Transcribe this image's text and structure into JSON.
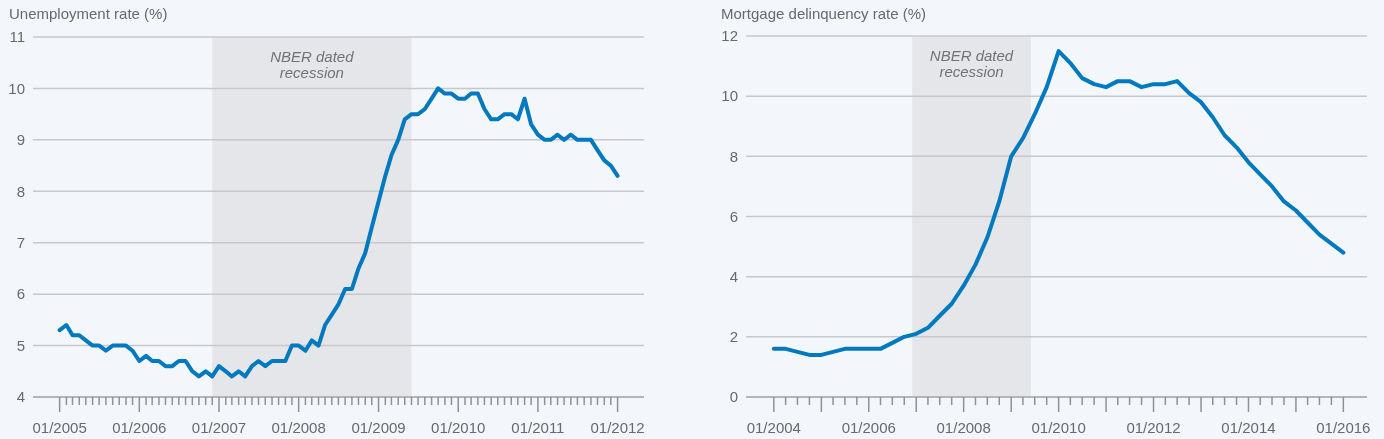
{
  "chart_data": [
    {
      "type": "line",
      "ylabel": "Unemployment rate (%)",
      "x": [
        "2005-01",
        "2005-02",
        "2005-03",
        "2005-04",
        "2005-05",
        "2005-06",
        "2005-07",
        "2005-08",
        "2005-09",
        "2005-10",
        "2005-11",
        "2005-12",
        "2006-01",
        "2006-02",
        "2006-03",
        "2006-04",
        "2006-05",
        "2006-06",
        "2006-07",
        "2006-08",
        "2006-09",
        "2006-10",
        "2006-11",
        "2006-12",
        "2007-01",
        "2007-02",
        "2007-03",
        "2007-04",
        "2007-05",
        "2007-06",
        "2007-07",
        "2007-08",
        "2007-09",
        "2007-10",
        "2007-11",
        "2007-12",
        "2008-01",
        "2008-02",
        "2008-03",
        "2008-04",
        "2008-05",
        "2008-06",
        "2008-07",
        "2008-08",
        "2008-09",
        "2008-10",
        "2008-11",
        "2008-12",
        "2009-01",
        "2009-02",
        "2009-03",
        "2009-04",
        "2009-05",
        "2009-06",
        "2009-07",
        "2009-08",
        "2009-09",
        "2009-10",
        "2009-11",
        "2009-12",
        "2010-01",
        "2010-02",
        "2010-03",
        "2010-04",
        "2010-05",
        "2010-06",
        "2010-07",
        "2010-08",
        "2010-09",
        "2010-10",
        "2010-11",
        "2010-12",
        "2011-01",
        "2011-02",
        "2011-03",
        "2011-04",
        "2011-05",
        "2011-06",
        "2011-07",
        "2011-08",
        "2011-09",
        "2011-10",
        "2011-11",
        "2011-12",
        "2012-01"
      ],
      "series": [
        {
          "color": "#0079c1",
          "values": [
            5.3,
            5.4,
            5.2,
            5.2,
            5.1,
            5.0,
            5.0,
            4.9,
            5.0,
            5.0,
            5.0,
            4.9,
            4.7,
            4.8,
            4.7,
            4.7,
            4.6,
            4.6,
            4.7,
            4.7,
            4.5,
            4.4,
            4.5,
            4.4,
            4.6,
            4.5,
            4.4,
            4.5,
            4.4,
            4.6,
            4.7,
            4.6,
            4.7,
            4.7,
            4.7,
            5.0,
            5.0,
            4.9,
            5.1,
            5.0,
            5.4,
            5.6,
            5.8,
            6.1,
            6.1,
            6.5,
            6.8,
            7.3,
            7.8,
            8.3,
            8.7,
            9.0,
            9.4,
            9.5,
            9.5,
            9.6,
            9.8,
            10.0,
            9.9,
            9.9,
            9.8,
            9.8,
            9.9,
            9.9,
            9.6,
            9.4,
            9.4,
            9.5,
            9.5,
            9.4,
            9.8,
            9.3,
            9.1,
            9.0,
            9.0,
            9.1,
            9.0,
            9.1,
            9.0,
            9.0,
            9.0,
            8.8,
            8.6,
            8.5,
            8.3
          ]
        }
      ],
      "xlim": [
        "2004-09",
        "2012-05"
      ],
      "xticks": [
        {
          "value": "2005-01",
          "label": "01/2005"
        },
        {
          "value": "2005-02",
          "label": null
        },
        {
          "value": "2005-03",
          "label": null
        },
        {
          "value": "2005-04",
          "label": null
        },
        {
          "value": "2005-05",
          "label": null
        },
        {
          "value": "2005-06",
          "label": null
        },
        {
          "value": "2005-07",
          "label": null
        },
        {
          "value": "2005-08",
          "label": null
        },
        {
          "value": "2005-09",
          "label": null
        },
        {
          "value": "2005-10",
          "label": null
        },
        {
          "value": "2005-11",
          "label": null
        },
        {
          "value": "2005-12",
          "label": null
        },
        {
          "value": "2006-01",
          "label": "01/2006"
        },
        {
          "value": "2006-02",
          "label": null
        },
        {
          "value": "2006-03",
          "label": null
        },
        {
          "value": "2006-04",
          "label": null
        },
        {
          "value": "2006-05",
          "label": null
        },
        {
          "value": "2006-06",
          "label": null
        },
        {
          "value": "2006-07",
          "label": null
        },
        {
          "value": "2006-08",
          "label": null
        },
        {
          "value": "2006-09",
          "label": null
        },
        {
          "value": "2006-10",
          "label": null
        },
        {
          "value": "2006-11",
          "label": null
        },
        {
          "value": "2006-12",
          "label": null
        },
        {
          "value": "2007-01",
          "label": "01/2007"
        },
        {
          "value": "2007-02",
          "label": null
        },
        {
          "value": "2007-03",
          "label": null
        },
        {
          "value": "2007-04",
          "label": null
        },
        {
          "value": "2007-05",
          "label": null
        },
        {
          "value": "2007-06",
          "label": null
        },
        {
          "value": "2007-07",
          "label": null
        },
        {
          "value": "2007-08",
          "label": null
        },
        {
          "value": "2007-09",
          "label": null
        },
        {
          "value": "2007-10",
          "label": null
        },
        {
          "value": "2007-11",
          "label": null
        },
        {
          "value": "2007-12",
          "label": null
        },
        {
          "value": "2008-01",
          "label": "01/2008"
        },
        {
          "value": "2008-02",
          "label": null
        },
        {
          "value": "2008-03",
          "label": null
        },
        {
          "value": "2008-04",
          "label": null
        },
        {
          "value": "2008-05",
          "label": null
        },
        {
          "value": "2008-06",
          "label": null
        },
        {
          "value": "2008-07",
          "label": null
        },
        {
          "value": "2008-08",
          "label": null
        },
        {
          "value": "2008-09",
          "label": null
        },
        {
          "value": "2008-10",
          "label": null
        },
        {
          "value": "2008-11",
          "label": null
        },
        {
          "value": "2008-12",
          "label": null
        },
        {
          "value": "2009-01",
          "label": "01/2009"
        },
        {
          "value": "2009-02",
          "label": null
        },
        {
          "value": "2009-03",
          "label": null
        },
        {
          "value": "2009-04",
          "label": null
        },
        {
          "value": "2009-05",
          "label": null
        },
        {
          "value": "2009-06",
          "label": null
        },
        {
          "value": "2009-07",
          "label": null
        },
        {
          "value": "2009-08",
          "label": null
        },
        {
          "value": "2009-09",
          "label": null
        },
        {
          "value": "2009-10",
          "label": null
        },
        {
          "value": "2009-11",
          "label": null
        },
        {
          "value": "2009-12",
          "label": null
        },
        {
          "value": "2010-01",
          "label": "01/2010"
        },
        {
          "value": "2010-02",
          "label": null
        },
        {
          "value": "2010-03",
          "label": null
        },
        {
          "value": "2010-04",
          "label": null
        },
        {
          "value": "2010-05",
          "label": null
        },
        {
          "value": "2010-06",
          "label": null
        },
        {
          "value": "2010-07",
          "label": null
        },
        {
          "value": "2010-08",
          "label": null
        },
        {
          "value": "2010-09",
          "label": null
        },
        {
          "value": "2010-10",
          "label": null
        },
        {
          "value": "2010-11",
          "label": null
        },
        {
          "value": "2010-12",
          "label": null
        },
        {
          "value": "2011-01",
          "label": "01/2011"
        },
        {
          "value": "2011-02",
          "label": null
        },
        {
          "value": "2011-03",
          "label": null
        },
        {
          "value": "2011-04",
          "label": null
        },
        {
          "value": "2011-05",
          "label": null
        },
        {
          "value": "2011-06",
          "label": null
        },
        {
          "value": "2011-07",
          "label": null
        },
        {
          "value": "2011-08",
          "label": null
        },
        {
          "value": "2011-09",
          "label": null
        },
        {
          "value": "2011-10",
          "label": null
        },
        {
          "value": "2011-11",
          "label": null
        },
        {
          "value": "2011-12",
          "label": null
        },
        {
          "value": "2012-01",
          "label": "01/2012"
        }
      ],
      "ylim": [
        4,
        11
      ],
      "yticks": [
        4,
        5,
        6,
        7,
        8,
        9,
        10,
        11
      ],
      "grid": "y",
      "bands": [
        {
          "axis": "x",
          "from": "2006-12",
          "to": "2009-06",
          "label": "NBER dated recession",
          "color": "#e4e6e9"
        }
      ]
    },
    {
      "type": "line",
      "ylabel": "Mortgage delinquency rate (%)",
      "x": [
        "2004-01",
        "2004-04",
        "2004-07",
        "2004-10",
        "2005-01",
        "2005-04",
        "2005-07",
        "2005-10",
        "2006-01",
        "2006-04",
        "2006-07",
        "2006-10",
        "2007-01",
        "2007-04",
        "2007-07",
        "2007-10",
        "2008-01",
        "2008-04",
        "2008-07",
        "2008-10",
        "2009-01",
        "2009-04",
        "2009-07",
        "2009-10",
        "2010-01",
        "2010-04",
        "2010-07",
        "2010-10",
        "2011-01",
        "2011-04",
        "2011-07",
        "2011-10",
        "2012-01",
        "2012-04",
        "2012-07",
        "2012-10",
        "2013-01",
        "2013-04",
        "2013-07",
        "2013-10",
        "2014-01",
        "2014-04",
        "2014-07",
        "2014-10",
        "2015-01",
        "2015-04",
        "2015-07",
        "2015-10",
        "2016-01"
      ],
      "series": [
        {
          "color": "#0079c1",
          "values": [
            1.6,
            1.6,
            1.5,
            1.4,
            1.4,
            1.5,
            1.6,
            1.6,
            1.6,
            1.6,
            1.8,
            2.0,
            2.1,
            2.3,
            2.7,
            3.1,
            3.7,
            4.4,
            5.3,
            6.5,
            8.0,
            8.6,
            9.4,
            10.3,
            11.5,
            11.1,
            10.6,
            10.4,
            10.3,
            10.5,
            10.5,
            10.3,
            10.4,
            10.4,
            10.5,
            10.1,
            9.8,
            9.3,
            8.7,
            8.3,
            7.8,
            7.4,
            7.0,
            6.5,
            6.2,
            5.8,
            5.4,
            5.1,
            4.8
          ]
        }
      ],
      "xlim": [
        "2003-06",
        "2016-07"
      ],
      "xticks": [
        {
          "value": "2004-01",
          "label": "01/2004"
        },
        {
          "value": "2004-04",
          "label": null
        },
        {
          "value": "2004-07",
          "label": null
        },
        {
          "value": "2004-10",
          "label": null
        },
        {
          "value": "2005-01",
          "label": null
        },
        {
          "value": "2005-04",
          "label": null
        },
        {
          "value": "2005-07",
          "label": null
        },
        {
          "value": "2005-10",
          "label": null
        },
        {
          "value": "2006-01",
          "label": "01/2006"
        },
        {
          "value": "2006-04",
          "label": null
        },
        {
          "value": "2006-07",
          "label": null
        },
        {
          "value": "2006-10",
          "label": null
        },
        {
          "value": "2007-01",
          "label": null
        },
        {
          "value": "2007-04",
          "label": null
        },
        {
          "value": "2007-07",
          "label": null
        },
        {
          "value": "2007-10",
          "label": null
        },
        {
          "value": "2008-01",
          "label": "01/2008"
        },
        {
          "value": "2008-04",
          "label": null
        },
        {
          "value": "2008-07",
          "label": null
        },
        {
          "value": "2008-10",
          "label": null
        },
        {
          "value": "2009-01",
          "label": null
        },
        {
          "value": "2009-04",
          "label": null
        },
        {
          "value": "2009-07",
          "label": null
        },
        {
          "value": "2009-10",
          "label": null
        },
        {
          "value": "2010-01",
          "label": "01/2010"
        },
        {
          "value": "2010-04",
          "label": null
        },
        {
          "value": "2010-07",
          "label": null
        },
        {
          "value": "2010-10",
          "label": null
        },
        {
          "value": "2011-01",
          "label": null
        },
        {
          "value": "2011-04",
          "label": null
        },
        {
          "value": "2011-07",
          "label": null
        },
        {
          "value": "2011-10",
          "label": null
        },
        {
          "value": "2012-01",
          "label": "01/2012"
        },
        {
          "value": "2012-04",
          "label": null
        },
        {
          "value": "2012-07",
          "label": null
        },
        {
          "value": "2012-10",
          "label": null
        },
        {
          "value": "2013-01",
          "label": null
        },
        {
          "value": "2013-04",
          "label": null
        },
        {
          "value": "2013-07",
          "label": null
        },
        {
          "value": "2013-10",
          "label": null
        },
        {
          "value": "2014-01",
          "label": "01/2014"
        },
        {
          "value": "2014-04",
          "label": null
        },
        {
          "value": "2014-07",
          "label": null
        },
        {
          "value": "2014-10",
          "label": null
        },
        {
          "value": "2015-01",
          "label": null
        },
        {
          "value": "2015-04",
          "label": null
        },
        {
          "value": "2015-07",
          "label": null
        },
        {
          "value": "2015-10",
          "label": null
        },
        {
          "value": "2016-01",
          "label": "01/2016"
        }
      ],
      "ylim": [
        0,
        12
      ],
      "yticks": [
        0,
        2,
        4,
        6,
        8,
        10,
        12
      ],
      "grid": "y",
      "bands": [
        {
          "axis": "x",
          "from": "2006-12",
          "to": "2009-06",
          "label": "NBER dated recession",
          "color": "#e4e6e9"
        }
      ]
    }
  ]
}
